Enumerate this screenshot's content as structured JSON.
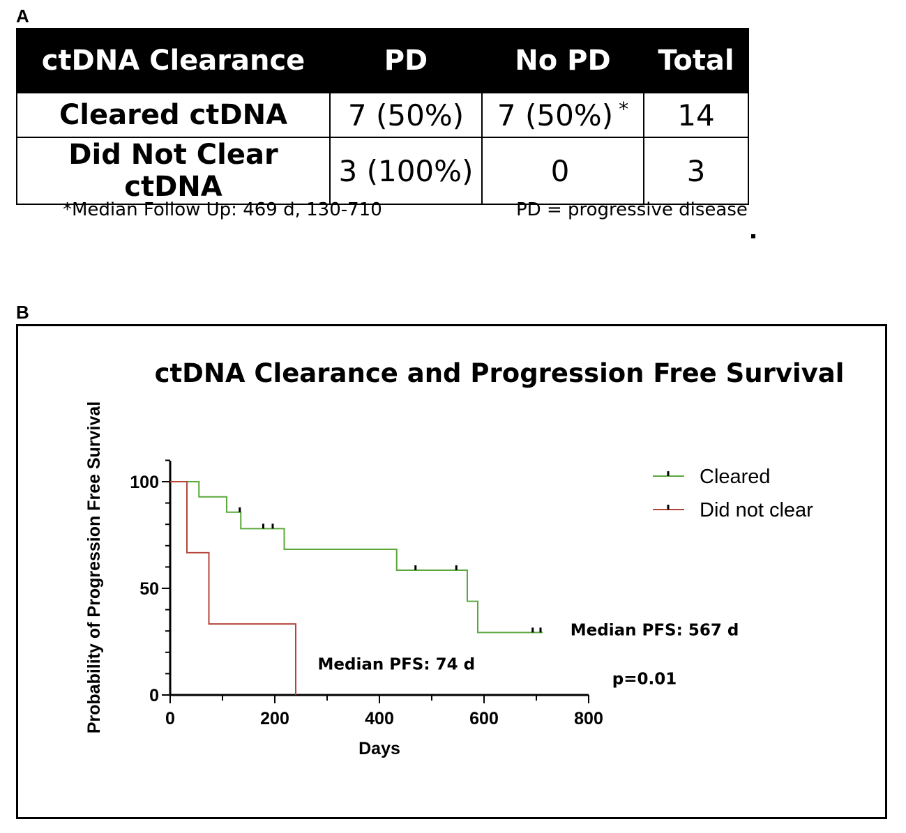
{
  "panel_a": {
    "label": "A",
    "table": {
      "headers": [
        "ctDNA Clearance",
        "PD",
        "No PD",
        "Total"
      ],
      "rows": [
        {
          "group": "Cleared ctDNA",
          "pd": "7 (50%)",
          "no_pd": "7 (50%)",
          "no_pd_mark": "*",
          "total": "14"
        },
        {
          "group": "Did Not Clear ctDNA",
          "pd": "3 (100%)",
          "no_pd": "0",
          "no_pd_mark": "",
          "total": "3"
        }
      ]
    },
    "footnote": "*Median Follow Up: 469 d, 130-710",
    "abbreviation": "PD = progressive disease"
  },
  "panel_b": {
    "label": "B"
  },
  "chart_data": {
    "type": "line",
    "subtype": "kaplan-meier step",
    "title": "ctDNA Clearance and Progression Free Survival",
    "xlabel": "Days",
    "ylabel": "Probability of Progression Free Survival",
    "xlim": [
      0,
      800
    ],
    "ylim": [
      0,
      100
    ],
    "x_ticks": [
      0,
      200,
      400,
      600,
      800
    ],
    "y_ticks": [
      0,
      50,
      100
    ],
    "grid": false,
    "legend_position": "top-right",
    "series": [
      {
        "name": "Cleared",
        "color": "#5aa83c",
        "steps": [
          [
            0,
            100
          ],
          [
            55,
            92.9
          ],
          [
            108,
            85.7
          ],
          [
            135,
            78
          ],
          [
            218,
            68.3
          ],
          [
            433,
            58.5
          ],
          [
            568,
            43.9
          ],
          [
            588,
            29.3
          ],
          [
            712,
            29.3
          ]
        ],
        "censored": [
          [
            133,
            85.7
          ],
          [
            178,
            78
          ],
          [
            196,
            78
          ],
          [
            469,
            58.5
          ],
          [
            547,
            58.5
          ],
          [
            693,
            29.3
          ],
          [
            708,
            29.3
          ]
        ]
      },
      {
        "name": "Did not clear",
        "color": "#b5453a",
        "steps": [
          [
            0,
            100
          ],
          [
            32,
            66.7
          ],
          [
            74,
            33.3
          ],
          [
            240,
            0
          ]
        ],
        "censored": []
      }
    ],
    "annotations": [
      {
        "text": "Median PFS: 567 d",
        "x": 765,
        "y": 28
      },
      {
        "text": "Median PFS: 74 d",
        "x": 282,
        "y": 12
      },
      {
        "text": "p=0.01",
        "x": 845,
        "y": 5
      }
    ]
  }
}
